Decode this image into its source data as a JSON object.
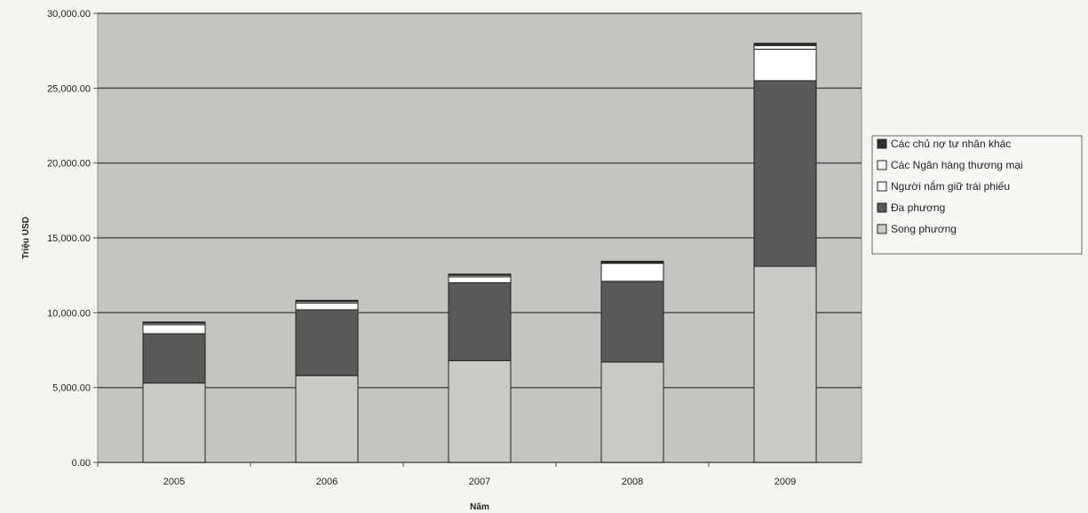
{
  "chart_data": {
    "type": "bar",
    "stacked": true,
    "title": "",
    "xlabel": "Năm",
    "ylabel": "Triệu USD",
    "ylim": [
      0,
      30000
    ],
    "yticks": [
      "0.00",
      "5,000.00",
      "10,000.00",
      "15,000.00",
      "20,000.00",
      "25,000.00",
      "30,000.00"
    ],
    "categories": [
      "2005",
      "2006",
      "2007",
      "2008",
      "2009"
    ],
    "series": [
      {
        "name": "Song phương",
        "color": "#c9c9c6",
        "values": [
          5300,
          5800,
          6800,
          6700,
          13100
        ]
      },
      {
        "name": "Đa phương",
        "color": "#595959",
        "values": [
          3300,
          4400,
          5200,
          5400,
          12400
        ]
      },
      {
        "name": "Người nắm giữ trái phiếu",
        "color": "#ffffff",
        "values": [
          600,
          450,
          400,
          1200,
          2100
        ]
      },
      {
        "name": "Các Ngân hàng thương mại",
        "color": "#f7f7f7",
        "values": [
          100,
          100,
          100,
          60,
          250
        ]
      },
      {
        "name": "Các chủ nợ tư nhân khác",
        "color": "#2e2e2e",
        "values": [
          80,
          80,
          80,
          80,
          150
        ]
      }
    ],
    "legend_order": [
      "Các chủ nợ tư nhân khác",
      "Các Ngân hàng thương mại",
      "Người nắm giữ trái phiếu",
      "Đa phương",
      "Song phương"
    ],
    "grid": true,
    "legend_position": "right"
  }
}
